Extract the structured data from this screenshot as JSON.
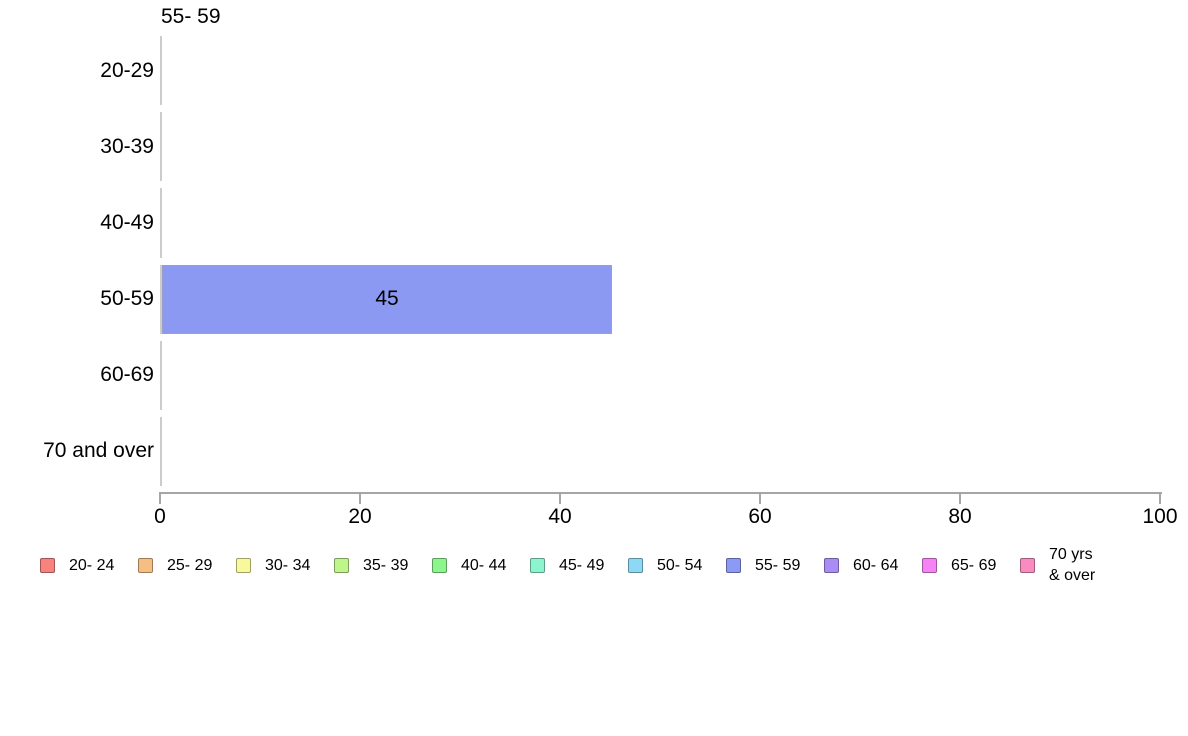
{
  "chart_data": {
    "type": "bar",
    "orientation": "horizontal",
    "title": "55- 59",
    "categories": [
      "20-29",
      "30-39",
      "40-49",
      "50-59",
      "60-69",
      "70 and over"
    ],
    "values": [
      0,
      0,
      0,
      45,
      0,
      0
    ],
    "xlim": [
      0,
      100
    ],
    "x_ticks": [
      "0",
      "20",
      "40",
      "60",
      "80",
      "100"
    ],
    "grid": false,
    "legend_position": "bottom",
    "bar_color": "#8C99F2",
    "bar_border_color": "#989fc9",
    "x_axis_color": "#a6a6a6",
    "category_axis_color": "#cccccc",
    "legend": [
      {
        "label": "20- 24",
        "color": "#F8827E"
      },
      {
        "label": "25- 29",
        "color": "#F5BE83"
      },
      {
        "label": "30- 34",
        "color": "#F8F89C"
      },
      {
        "label": "35- 39",
        "color": "#BEF58C"
      },
      {
        "label": "40- 44",
        "color": "#8CF58C"
      },
      {
        "label": "45- 49",
        "color": "#8CF5CD"
      },
      {
        "label": "50- 54",
        "color": "#8CD8F5"
      },
      {
        "label": "55- 59",
        "color": "#8C99F5"
      },
      {
        "label": "60- 64",
        "color": "#A98CF5"
      },
      {
        "label": "65- 69",
        "color": "#F583F5"
      },
      {
        "label": "70 yrs\n& over",
        "color": "#F88CC0"
      }
    ]
  }
}
